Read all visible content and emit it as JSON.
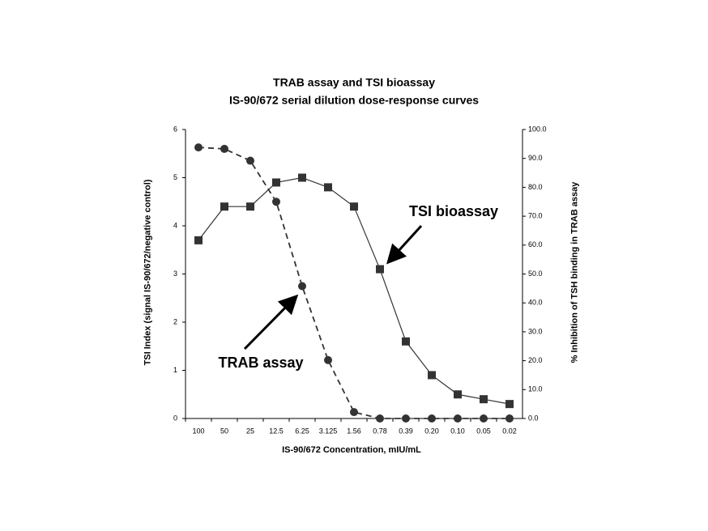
{
  "chart_data": {
    "type": "line",
    "title": "TRAB assay and TSI bioassay",
    "subtitle": "IS-90/672 serial dilution dose-response curves",
    "x_label": "IS-90/672 Concentration, mIU/mL",
    "y_label": "TSI Index (signal IS-90/672/negative control)",
    "y2_label": "% Inhibition of TSH binding in TRAB assay",
    "categories": [
      "100",
      "50",
      "25",
      "12.5",
      "6.25",
      "3.125",
      "1.56",
      "0.78",
      "0.39",
      "0.20",
      "0.10",
      "0.05",
      "0.02"
    ],
    "ylim": [
      0,
      6
    ],
    "yticks": [
      0,
      1,
      2,
      3,
      4,
      5,
      6
    ],
    "y2lim": [
      0,
      100
    ],
    "y2ticks": [
      {
        "value": 0,
        "label": "0.0"
      },
      {
        "value": 10,
        "label": "10.0"
      },
      {
        "value": 20,
        "label": "20.0"
      },
      {
        "value": 30,
        "label": "30.0"
      },
      {
        "value": 40,
        "label": "40.0"
      },
      {
        "value": 50,
        "label": "50.0"
      },
      {
        "value": 60,
        "label": "60.0"
      },
      {
        "value": 70,
        "label": "70.0"
      },
      {
        "value": 80,
        "label": "80.0"
      },
      {
        "value": 90,
        "label": "90.0"
      },
      {
        "value": 100,
        "label": "100.0"
      }
    ],
    "series": [
      {
        "name": "TSI bioassay",
        "color": "#333333",
        "marker": "square",
        "dashed": false,
        "values": [
          3.7,
          4.4,
          4.4,
          4.9,
          5.0,
          4.8,
          4.4,
          3.1,
          1.6,
          0.9,
          0.5,
          0.4,
          0.3
        ]
      },
      {
        "name": "TRAB assay",
        "color": "#333333",
        "marker": "circle",
        "dashed": true,
        "axis": "y2",
        "values": [
          93.8,
          93.3,
          89.2,
          75,
          45.8,
          20.2,
          2.2,
          0,
          0,
          0,
          0,
          0,
          0
        ]
      }
    ]
  }
}
